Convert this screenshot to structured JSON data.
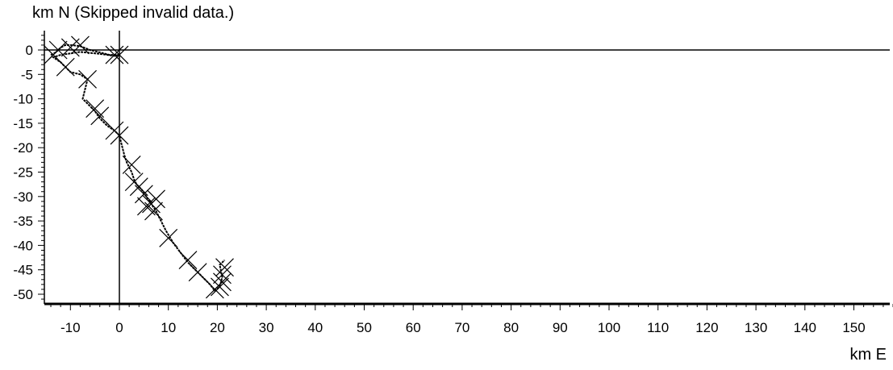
{
  "chart_data": {
    "type": "scatter",
    "title": "km N (Skipped invalid data.)",
    "xlabel": "km E",
    "ylabel": "km N",
    "xlim": [
      -15,
      158
    ],
    "ylim": [
      -52,
      4
    ],
    "grid": false,
    "x_ticks": [
      -10,
      0,
      10,
      20,
      30,
      40,
      50,
      60,
      70,
      80,
      90,
      100,
      110,
      120,
      130,
      140,
      150
    ],
    "y_ticks": [
      0,
      -5,
      -10,
      -15,
      -20,
      -25,
      -30,
      -35,
      -40,
      -45,
      -50
    ],
    "track": [
      [
        -14,
        -1
      ],
      [
        -13,
        -0.5
      ],
      [
        -12,
        0.5
      ],
      [
        -11,
        1
      ],
      [
        -10,
        1
      ],
      [
        -8,
        0.8
      ],
      [
        -6,
        0
      ],
      [
        -4,
        -0.5
      ],
      [
        -2,
        -1
      ],
      [
        0,
        -1
      ],
      [
        -1,
        -1.2
      ],
      [
        -4,
        -0.8
      ],
      [
        -8,
        -0.4
      ],
      [
        -12,
        -1
      ],
      [
        -13.5,
        -1.5
      ],
      [
        -12,
        -2.5
      ],
      [
        -11,
        -3.5
      ],
      [
        -10,
        -4.5
      ],
      [
        -8,
        -5
      ],
      [
        -6.5,
        -6
      ],
      [
        -7,
        -8
      ],
      [
        -7.5,
        -10
      ],
      [
        -6,
        -11.5
      ],
      [
        -5,
        -12.5
      ],
      [
        -4,
        -14
      ],
      [
        -2.5,
        -15.5
      ],
      [
        -1,
        -16.5
      ],
      [
        0,
        -17.5
      ],
      [
        0.5,
        -19.5
      ],
      [
        1,
        -21.5
      ],
      [
        1.5,
        -23
      ],
      [
        2,
        -24
      ],
      [
        2.5,
        -25
      ],
      [
        3,
        -26.5
      ],
      [
        3.5,
        -27.5
      ],
      [
        4.5,
        -28.5
      ],
      [
        5.5,
        -30
      ],
      [
        6.5,
        -31.5
      ],
      [
        7.5,
        -33
      ],
      [
        8.5,
        -35
      ],
      [
        9.5,
        -37
      ],
      [
        11,
        -39.5
      ],
      [
        12.5,
        -41.5
      ],
      [
        14,
        -43.5
      ],
      [
        15.5,
        -45
      ],
      [
        17,
        -46.5
      ],
      [
        18.5,
        -48
      ],
      [
        19.5,
        -49.3
      ],
      [
        20.5,
        -48.5
      ],
      [
        21,
        -46.5
      ],
      [
        20.5,
        -44
      ],
      [
        21.5,
        -43
      ]
    ],
    "markers": [
      [
        -13.5,
        -1
      ],
      [
        -12.5,
        0
      ],
      [
        -11,
        -3.5
      ],
      [
        -10,
        0.5
      ],
      [
        -8,
        1
      ],
      [
        -6.5,
        -6
      ],
      [
        -5,
        -12
      ],
      [
        -4,
        -13.5
      ],
      [
        -1,
        -1
      ],
      [
        0,
        -1
      ],
      [
        -1,
        -16.5
      ],
      [
        0,
        -17.5
      ],
      [
        2.5,
        -23.5
      ],
      [
        3,
        -27
      ],
      [
        4,
        -28
      ],
      [
        5,
        -29.5
      ],
      [
        5.5,
        -32
      ],
      [
        6.5,
        -31.5
      ],
      [
        7,
        -33
      ],
      [
        7.5,
        -30.5
      ],
      [
        10,
        -38.5
      ],
      [
        14,
        -43
      ],
      [
        16,
        -45.5
      ],
      [
        19.5,
        -49
      ],
      [
        21,
        -47.5
      ],
      [
        21,
        -46
      ],
      [
        21.5,
        -44.5
      ],
      [
        20.5,
        -48.5
      ]
    ]
  }
}
